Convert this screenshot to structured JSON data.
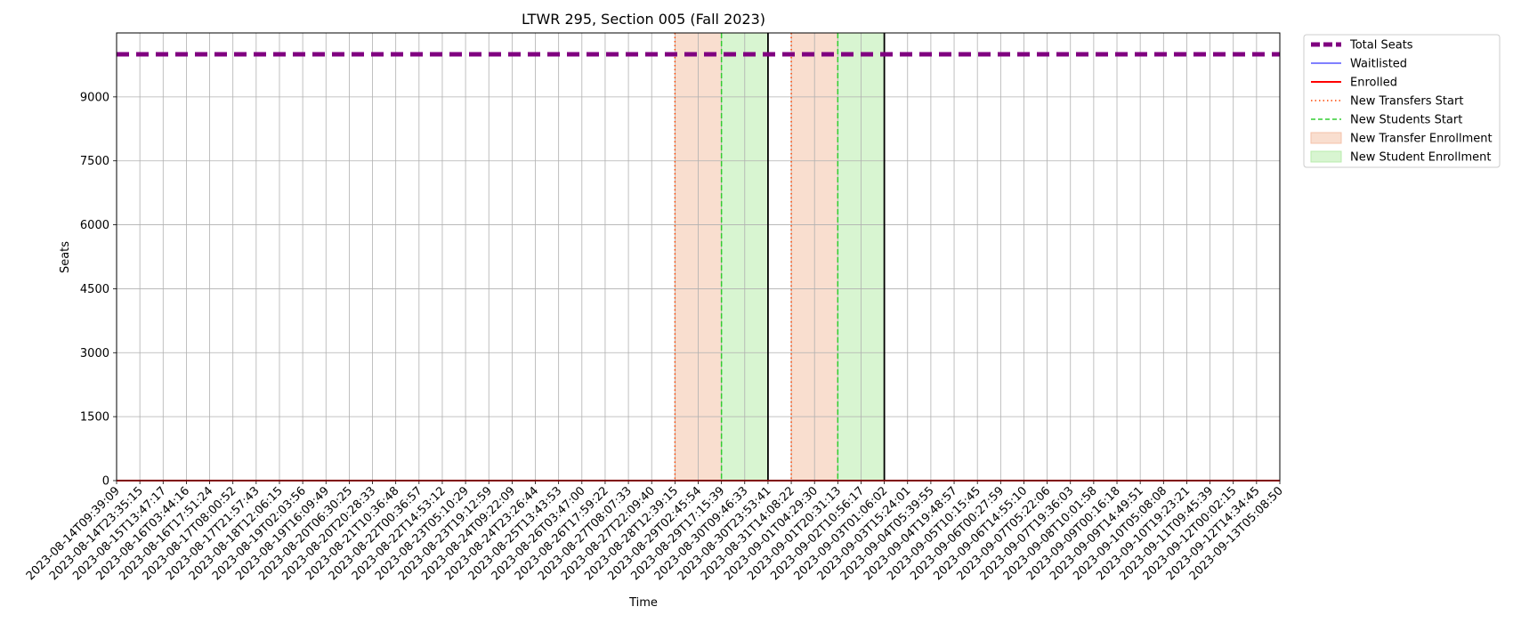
{
  "chart_data": {
    "type": "line",
    "title": "LTWR 295, Section 005 (Fall 2023)",
    "xlabel": "Time",
    "ylabel": "Seats",
    "ylim": [
      0,
      10500
    ],
    "yticks": [
      0,
      1500,
      3000,
      4500,
      6000,
      7500,
      9000
    ],
    "grid": true,
    "legend_position": "outside upper right",
    "x_labels": [
      "2023-08-14T09:39:09",
      "2023-08-14T23:35:15",
      "2023-08-15T13:47:17",
      "2023-08-16T03:44:16",
      "2023-08-16T17:51:24",
      "2023-08-17T08:00:52",
      "2023-08-17T21:57:43",
      "2023-08-18T12:06:15",
      "2023-08-19T02:03:56",
      "2023-08-19T16:09:49",
      "2023-08-20T06:30:25",
      "2023-08-20T20:28:33",
      "2023-08-21T10:36:48",
      "2023-08-22T00:36:57",
      "2023-08-22T14:53:12",
      "2023-08-23T05:10:29",
      "2023-08-23T19:12:59",
      "2023-08-24T09:22:09",
      "2023-08-24T23:26:44",
      "2023-08-25T13:43:53",
      "2023-08-26T03:47:00",
      "2023-08-26T17:59:22",
      "2023-08-27T08:07:33",
      "2023-08-27T22:09:40",
      "2023-08-28T12:39:15",
      "2023-08-29T02:45:54",
      "2023-08-29T17:15:39",
      "2023-08-30T09:46:33",
      "2023-08-30T23:53:41",
      "2023-08-31T14:08:22",
      "2023-09-01T04:29:30",
      "2023-09-01T20:31:13",
      "2023-09-02T10:56:17",
      "2023-09-03T01:06:02",
      "2023-09-03T15:24:01",
      "2023-09-04T05:39:55",
      "2023-09-04T19:48:57",
      "2023-09-05T10:15:45",
      "2023-09-06T00:27:59",
      "2023-09-06T14:55:10",
      "2023-09-07T05:22:06",
      "2023-09-07T19:36:03",
      "2023-09-08T10:01:58",
      "2023-09-09T00:16:18",
      "2023-09-09T14:49:51",
      "2023-09-10T05:08:08",
      "2023-09-10T19:23:21",
      "2023-09-11T09:45:39",
      "2023-09-12T00:02:15",
      "2023-09-12T14:34:45",
      "2023-09-13T05:08:50"
    ],
    "series": [
      {
        "name": "Total Seats",
        "value": 10000,
        "color": "#800080",
        "style": "dashed-thick"
      },
      {
        "name": "Waitlisted",
        "value": 0,
        "color": "#0000ff",
        "style": "solid-thin"
      },
      {
        "name": "Enrolled",
        "value": 0,
        "color": "#ff0000",
        "style": "solid"
      }
    ],
    "events": [
      {
        "name": "New Transfers Start",
        "type": "vline",
        "color": "#ff4500",
        "style": "dotted"
      },
      {
        "name": "New Students Start",
        "type": "vline",
        "color": "#32cd32",
        "style": "dashed"
      },
      {
        "name": "New Transfer Enrollment",
        "type": "span",
        "color": "#f4c2a8"
      },
      {
        "name": "New Student Enrollment",
        "type": "span",
        "color": "#b8ecac"
      }
    ],
    "periods": [
      {
        "transfer_start": "2023-08-28T12:39:15",
        "student_start": "2023-08-29T17:15:39",
        "end": "2023-08-30T23:53:41"
      },
      {
        "transfer_start": "2023-08-31T14:08:22",
        "student_start": "2023-09-01T20:31:13",
        "end": "2023-09-03T01:06:02"
      }
    ]
  }
}
